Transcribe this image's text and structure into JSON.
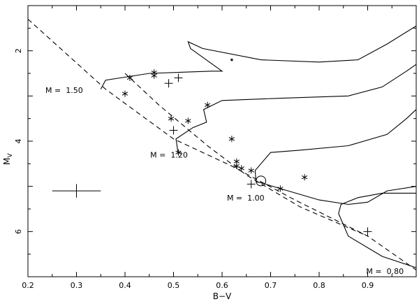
{
  "chart_data": {
    "type": "scatter",
    "xlabel": "B−V",
    "ylabel_main": "M",
    "ylabel_sub": "V",
    "xlim": [
      0.2,
      1.0
    ],
    "ylim": [
      7.0,
      1.0
    ],
    "y_inverted": true,
    "grid": false,
    "x_ticks": [
      0.2,
      0.3,
      0.4,
      0.5,
      0.6,
      0.7,
      0.8,
      0.9
    ],
    "x_tick_labels": [
      "0.2",
      "0.3",
      "0.4",
      "0.5",
      "0.6",
      "0.7",
      "0.8",
      "0.9"
    ],
    "y_ticks": [
      2,
      4,
      6
    ],
    "y_tick_labels": [
      "2",
      "4",
      "6"
    ],
    "zams_lines": [
      {
        "points": [
          [
            0.2,
            1.3
          ],
          [
            0.36,
            2.85
          ],
          [
            0.5,
            3.95
          ],
          [
            0.62,
            4.55
          ],
          [
            0.75,
            5.3
          ],
          [
            0.9,
            6.1
          ],
          [
            1.0,
            6.85
          ]
        ]
      },
      {
        "points": [
          [
            0.4,
            2.5
          ],
          [
            0.47,
            3.2
          ],
          [
            0.57,
            4.1
          ],
          [
            0.65,
            4.75
          ],
          [
            0.76,
            5.45
          ],
          [
            0.9,
            6.1
          ]
        ]
      }
    ],
    "tracks": [
      {
        "points": [
          [
            0.35,
            2.85
          ],
          [
            0.36,
            2.65
          ],
          [
            0.45,
            2.5
          ],
          [
            0.58,
            2.45
          ],
          [
            0.6,
            2.45
          ],
          [
            0.535,
            1.95
          ],
          [
            0.53,
            1.8
          ],
          [
            0.56,
            1.95
          ],
          [
            0.68,
            2.2
          ],
          [
            0.8,
            2.25
          ],
          [
            0.88,
            2.2
          ],
          [
            0.94,
            1.85
          ],
          [
            1.0,
            1.45
          ]
        ]
      },
      {
        "points": [
          [
            0.51,
            4.3
          ],
          [
            0.505,
            3.95
          ],
          [
            0.54,
            3.7
          ],
          [
            0.568,
            3.58
          ],
          [
            0.562,
            3.3
          ],
          [
            0.6,
            3.1
          ],
          [
            0.72,
            3.05
          ],
          [
            0.86,
            3.0
          ],
          [
            0.93,
            2.8
          ],
          [
            0.98,
            2.45
          ],
          [
            1.0,
            2.3
          ]
        ]
      },
      {
        "points": [
          [
            0.67,
            4.9
          ],
          [
            0.668,
            4.65
          ],
          [
            0.7,
            4.25
          ],
          [
            0.76,
            4.2
          ],
          [
            0.86,
            4.1
          ],
          [
            0.94,
            3.85
          ],
          [
            0.98,
            3.5
          ],
          [
            1.0,
            3.3
          ]
        ]
      },
      {
        "points": [
          [
            0.67,
            4.9
          ],
          [
            0.68,
            4.92
          ],
          [
            0.72,
            5.05
          ],
          [
            0.8,
            5.3
          ],
          [
            0.86,
            5.4
          ],
          [
            0.9,
            5.35
          ],
          [
            0.94,
            5.1
          ],
          [
            1.0,
            5.0
          ]
        ]
      },
      {
        "points": [
          [
            0.84,
            5.6
          ],
          [
            0.845,
            5.4
          ],
          [
            0.88,
            5.25
          ],
          [
            0.93,
            5.15
          ],
          [
            1.0,
            5.15
          ]
        ]
      },
      {
        "points": [
          [
            0.84,
            5.6
          ],
          [
            0.86,
            6.1
          ],
          [
            0.93,
            6.55
          ],
          [
            1.0,
            6.8
          ]
        ]
      }
    ],
    "mass_labels": [
      {
        "text": "M =  1.50",
        "x": 0.236,
        "y": 2.87
      },
      {
        "text": "M =  1.20",
        "x": 0.452,
        "y": 4.3
      },
      {
        "text": "M =  1.00",
        "x": 0.61,
        "y": 5.25
      },
      {
        "text": "M =  0.80",
        "x": 0.897,
        "y": 6.88
      }
    ],
    "series": [
      {
        "marker": "asterisk",
        "points": [
          [
            0.46,
            2.48
          ],
          [
            0.46,
            2.55
          ],
          [
            0.41,
            2.6
          ],
          [
            0.4,
            2.95
          ],
          [
            0.57,
            3.2
          ],
          [
            0.495,
            3.5
          ],
          [
            0.53,
            3.55
          ],
          [
            0.62,
            3.95
          ],
          [
            0.51,
            4.25
          ],
          [
            0.63,
            4.45
          ],
          [
            0.63,
            4.55
          ],
          [
            0.64,
            4.6
          ],
          [
            0.66,
            4.65
          ],
          [
            0.72,
            5.05
          ],
          [
            0.77,
            4.8
          ]
        ]
      },
      {
        "marker": "plus",
        "points": [
          [
            0.51,
            2.6
          ],
          [
            0.49,
            2.72
          ],
          [
            0.5,
            3.76
          ],
          [
            0.66,
            4.95
          ],
          [
            0.9,
            6.0
          ]
        ]
      },
      {
        "marker": "dot",
        "points": [
          [
            0.62,
            2.2
          ]
        ]
      }
    ],
    "sun": {
      "x": 0.68,
      "y": 4.88
    },
    "error_bar": {
      "x": 0.3,
      "y": 5.1,
      "dx": 0.05,
      "dy": 0.15
    }
  }
}
